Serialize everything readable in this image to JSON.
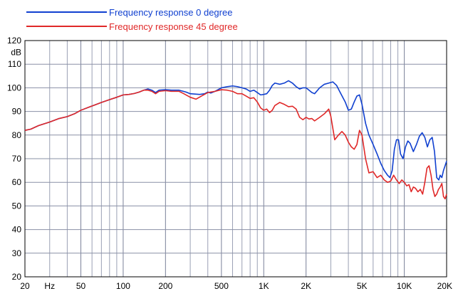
{
  "chart_data": {
    "type": "line",
    "x_scale": "log",
    "xlim": [
      20,
      20000
    ],
    "ylim": [
      20,
      120
    ],
    "y_unit": "dB",
    "x_unit": "Hz",
    "grid": true,
    "legend_position": "top-left",
    "x_ticks": [
      {
        "value": 20,
        "label": "20"
      },
      {
        "value": 50,
        "label": "50"
      },
      {
        "value": 100,
        "label": "100"
      },
      {
        "value": 200,
        "label": "200"
      },
      {
        "value": 500,
        "label": "500"
      },
      {
        "value": 1000,
        "label": "1K"
      },
      {
        "value": 2000,
        "label": "2K"
      },
      {
        "value": 5000,
        "label": "5K"
      },
      {
        "value": 10000,
        "label": "10K"
      },
      {
        "value": 20000,
        "label": "20K"
      }
    ],
    "y_ticks": [
      20,
      30,
      40,
      50,
      60,
      70,
      80,
      90,
      100,
      110,
      120
    ],
    "series": [
      {
        "name": "Frequency response 0 degree",
        "color": "#1040d0",
        "points": [
          [
            20,
            82
          ],
          [
            22,
            82.5
          ],
          [
            25,
            84
          ],
          [
            30,
            85.5
          ],
          [
            35,
            87
          ],
          [
            40,
            87.8
          ],
          [
            45,
            89
          ],
          [
            50,
            90.5
          ],
          [
            60,
            92.3
          ],
          [
            70,
            93.8
          ],
          [
            80,
            95
          ],
          [
            90,
            96
          ],
          [
            100,
            97
          ],
          [
            110,
            97.2
          ],
          [
            120,
            97.6
          ],
          [
            130,
            98.2
          ],
          [
            140,
            99
          ],
          [
            150,
            99.5
          ],
          [
            160,
            99
          ],
          [
            170,
            98
          ],
          [
            180,
            99
          ],
          [
            200,
            99.2
          ],
          [
            220,
            99
          ],
          [
            250,
            99
          ],
          [
            280,
            98.2
          ],
          [
            300,
            97.5
          ],
          [
            350,
            97.2
          ],
          [
            380,
            97.5
          ],
          [
            400,
            98.2
          ],
          [
            420,
            97.8
          ],
          [
            450,
            98.5
          ],
          [
            500,
            100
          ],
          [
            550,
            100.5
          ],
          [
            600,
            100.8
          ],
          [
            650,
            100.5
          ],
          [
            700,
            100
          ],
          [
            750,
            99.5
          ],
          [
            800,
            98.5
          ],
          [
            850,
            99
          ],
          [
            900,
            98
          ],
          [
            950,
            97
          ],
          [
            1000,
            97.2
          ],
          [
            1050,
            97.5
          ],
          [
            1100,
            99
          ],
          [
            1150,
            101
          ],
          [
            1200,
            102
          ],
          [
            1300,
            101.5
          ],
          [
            1400,
            102
          ],
          [
            1500,
            103
          ],
          [
            1600,
            102
          ],
          [
            1700,
            100.5
          ],
          [
            1800,
            99.5
          ],
          [
            1900,
            100
          ],
          [
            2000,
            100
          ],
          [
            2100,
            99
          ],
          [
            2200,
            98
          ],
          [
            2300,
            97.5
          ],
          [
            2500,
            100
          ],
          [
            2700,
            101.5
          ],
          [
            2900,
            102
          ],
          [
            3100,
            102.5
          ],
          [
            3300,
            101
          ],
          [
            3500,
            98
          ],
          [
            3800,
            94
          ],
          [
            4000,
            90.5
          ],
          [
            4200,
            91
          ],
          [
            4400,
            94
          ],
          [
            4600,
            96.5
          ],
          [
            4800,
            97
          ],
          [
            5000,
            93
          ],
          [
            5300,
            85
          ],
          [
            5600,
            80
          ],
          [
            6000,
            76
          ],
          [
            6400,
            72
          ],
          [
            6800,
            68
          ],
          [
            7200,
            65
          ],
          [
            7600,
            63
          ],
          [
            7900,
            62
          ],
          [
            8200,
            65
          ],
          [
            8500,
            74
          ],
          [
            8800,
            78
          ],
          [
            9100,
            78
          ],
          [
            9400,
            72
          ],
          [
            9800,
            70
          ],
          [
            10200,
            75
          ],
          [
            10600,
            77.5
          ],
          [
            11000,
            76.5
          ],
          [
            11600,
            73
          ],
          [
            12200,
            76
          ],
          [
            12800,
            79.5
          ],
          [
            13400,
            81
          ],
          [
            14000,
            79
          ],
          [
            14600,
            75
          ],
          [
            15200,
            78
          ],
          [
            15800,
            79
          ],
          [
            16400,
            73
          ],
          [
            17000,
            62
          ],
          [
            17600,
            61
          ],
          [
            18000,
            63
          ],
          [
            18500,
            62
          ],
          [
            19000,
            65
          ],
          [
            19500,
            67
          ],
          [
            20000,
            69
          ]
        ]
      },
      {
        "name": "Frequency response 45 degree",
        "color": "#e02828",
        "points": [
          [
            20,
            82
          ],
          [
            22,
            82.5
          ],
          [
            25,
            84
          ],
          [
            30,
            85.5
          ],
          [
            35,
            87
          ],
          [
            40,
            87.8
          ],
          [
            45,
            89
          ],
          [
            50,
            90.5
          ],
          [
            60,
            92.3
          ],
          [
            70,
            93.8
          ],
          [
            80,
            95
          ],
          [
            90,
            96
          ],
          [
            100,
            97
          ],
          [
            110,
            97.2
          ],
          [
            120,
            97.6
          ],
          [
            130,
            98.2
          ],
          [
            140,
            99
          ],
          [
            150,
            99
          ],
          [
            160,
            98.5
          ],
          [
            170,
            97.5
          ],
          [
            180,
            98.5
          ],
          [
            200,
            98.8
          ],
          [
            220,
            98.5
          ],
          [
            250,
            98.5
          ],
          [
            270,
            97.5
          ],
          [
            300,
            96
          ],
          [
            330,
            95.2
          ],
          [
            360,
            96.5
          ],
          [
            400,
            98
          ],
          [
            450,
            98.5
          ],
          [
            500,
            99.2
          ],
          [
            550,
            99
          ],
          [
            600,
            98.5
          ],
          [
            650,
            97.5
          ],
          [
            700,
            97.5
          ],
          [
            750,
            96.5
          ],
          [
            800,
            95.5
          ],
          [
            850,
            95.8
          ],
          [
            900,
            94
          ],
          [
            950,
            91.5
          ],
          [
            1000,
            90.5
          ],
          [
            1050,
            91
          ],
          [
            1100,
            89.5
          ],
          [
            1150,
            90.5
          ],
          [
            1200,
            92.5
          ],
          [
            1300,
            93.8
          ],
          [
            1400,
            93
          ],
          [
            1500,
            92
          ],
          [
            1600,
            92.2
          ],
          [
            1700,
            91
          ],
          [
            1800,
            87.5
          ],
          [
            1900,
            86.5
          ],
          [
            2000,
            87.5
          ],
          [
            2100,
            86.8
          ],
          [
            2200,
            87
          ],
          [
            2300,
            86
          ],
          [
            2500,
            87.5
          ],
          [
            2700,
            89
          ],
          [
            2900,
            91
          ],
          [
            3000,
            88
          ],
          [
            3200,
            78
          ],
          [
            3400,
            80
          ],
          [
            3600,
            81.5
          ],
          [
            3800,
            80
          ],
          [
            4000,
            77
          ],
          [
            4200,
            75
          ],
          [
            4400,
            74
          ],
          [
            4600,
            76
          ],
          [
            4800,
            82
          ],
          [
            5000,
            80
          ],
          [
            5300,
            70
          ],
          [
            5600,
            64
          ],
          [
            6000,
            64.5
          ],
          [
            6400,
            62
          ],
          [
            6800,
            63
          ],
          [
            7200,
            61
          ],
          [
            7600,
            60
          ],
          [
            8000,
            60.5
          ],
          [
            8400,
            63
          ],
          [
            8800,
            61
          ],
          [
            9200,
            59.5
          ],
          [
            9600,
            61
          ],
          [
            10000,
            60
          ],
          [
            10400,
            58.5
          ],
          [
            10800,
            59
          ],
          [
            11200,
            56
          ],
          [
            11600,
            58
          ],
          [
            12000,
            57.5
          ],
          [
            12500,
            56
          ],
          [
            13000,
            57
          ],
          [
            13500,
            55
          ],
          [
            14000,
            60
          ],
          [
            14500,
            66
          ],
          [
            15000,
            67
          ],
          [
            15500,
            63
          ],
          [
            16000,
            57
          ],
          [
            16500,
            54
          ],
          [
            17000,
            55
          ],
          [
            17500,
            57
          ],
          [
            18000,
            58
          ],
          [
            18500,
            59.5
          ],
          [
            19000,
            54
          ],
          [
            19500,
            53
          ],
          [
            20000,
            55
          ]
        ]
      }
    ]
  }
}
